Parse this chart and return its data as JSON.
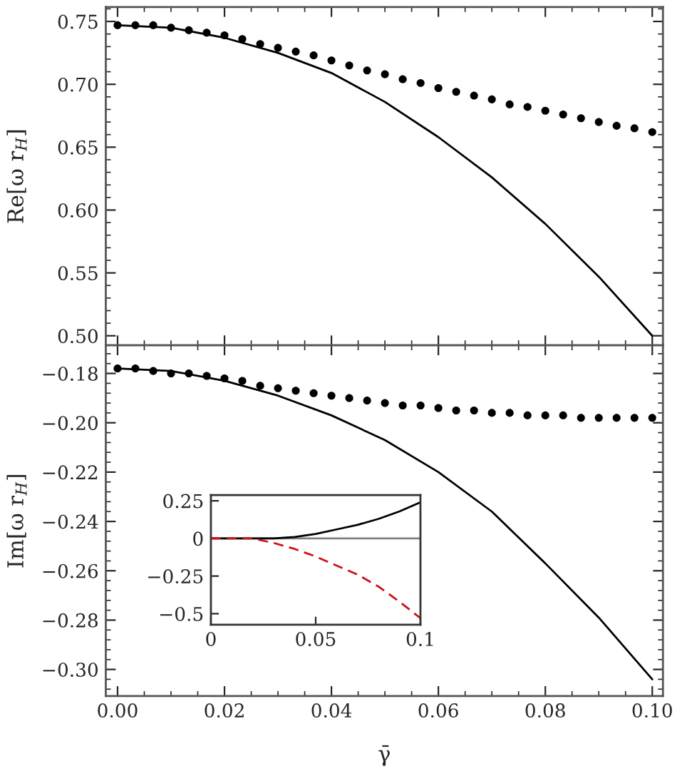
{
  "chart_data": [
    {
      "type": "line",
      "ylabel": "Re[ω r$_{H}$]",
      "xlim": [
        -0.0022,
        0.102
      ],
      "ylim": [
        0.4924,
        0.7615
      ],
      "xticks": [
        0,
        0.02,
        0.04,
        0.06,
        0.08,
        0.1
      ],
      "yticks": [
        {
          "value": 0.5,
          "label": "0.50"
        },
        {
          "value": 0.55,
          "label": "0.55"
        },
        {
          "value": 0.6,
          "label": "0.60"
        },
        {
          "value": 0.65,
          "label": "0.65"
        },
        {
          "value": 0.7,
          "label": "0.70"
        },
        {
          "value": 0.75,
          "label": "0.75"
        }
      ],
      "tick_labels": "y",
      "series": [
        {
          "type": "scatter",
          "color": "#000000",
          "marker": "circle",
          "x": [
            0.0,
            0.00333,
            0.00667,
            0.01,
            0.01333,
            0.01667,
            0.02,
            0.02333,
            0.02667,
            0.03,
            0.03333,
            0.03667,
            0.04,
            0.04333,
            0.04667,
            0.05,
            0.05333,
            0.05667,
            0.06,
            0.06333,
            0.06667,
            0.07,
            0.07333,
            0.07667,
            0.08,
            0.08333,
            0.08667,
            0.09,
            0.09333,
            0.09667,
            0.1
          ],
          "values": [
            0.747,
            0.747,
            0.747,
            0.745,
            0.743,
            0.741,
            0.739,
            0.736,
            0.732,
            0.729,
            0.726,
            0.723,
            0.719,
            0.715,
            0.711,
            0.708,
            0.704,
            0.701,
            0.697,
            0.694,
            0.691,
            0.688,
            0.684,
            0.682,
            0.679,
            0.676,
            0.673,
            0.67,
            0.667,
            0.665,
            0.662
          ]
        },
        {
          "color": "#000000",
          "line_style": "solid",
          "x": [
            0.0,
            0.01,
            0.02,
            0.03,
            0.04,
            0.05,
            0.06,
            0.07,
            0.08,
            0.09,
            0.1
          ],
          "values": [
            0.747,
            0.745,
            0.737,
            0.725,
            0.709,
            0.686,
            0.658,
            0.626,
            0.589,
            0.547,
            0.5
          ]
        }
      ]
    },
    {
      "type": "line",
      "ylabel": "Im[ω r$_{H}$]",
      "xlabel": "γ̄",
      "xlim": [
        -0.0022,
        0.102
      ],
      "ylim": [
        -0.3108,
        -0.1686
      ],
      "xticks": [
        {
          "value": 0.0,
          "label": "0.00"
        },
        {
          "value": 0.02,
          "label": "0.02"
        },
        {
          "value": 0.04,
          "label": "0.04"
        },
        {
          "value": 0.06,
          "label": "0.06"
        },
        {
          "value": 0.08,
          "label": "0.08"
        },
        {
          "value": 0.1,
          "label": "0.10"
        }
      ],
      "yticks": [
        {
          "value": -0.3,
          "label": "−0.30"
        },
        {
          "value": -0.28,
          "label": "−0.28"
        },
        {
          "value": -0.26,
          "label": "−0.26"
        },
        {
          "value": -0.24,
          "label": "−0.24"
        },
        {
          "value": -0.22,
          "label": "−0.22"
        },
        {
          "value": -0.2,
          "label": "−0.20"
        },
        {
          "value": -0.18,
          "label": "−0.18"
        }
      ],
      "series": [
        {
          "type": "scatter",
          "color": "#000000",
          "marker": "circle",
          "x": [
            0.0,
            0.00333,
            0.00667,
            0.01,
            0.01333,
            0.01667,
            0.02,
            0.02333,
            0.02667,
            0.03,
            0.03333,
            0.03667,
            0.04,
            0.04333,
            0.04667,
            0.05,
            0.05333,
            0.05667,
            0.06,
            0.06333,
            0.06667,
            0.07,
            0.07333,
            0.07667,
            0.08,
            0.08333,
            0.08667,
            0.09,
            0.09333,
            0.09667,
            0.1
          ],
          "values": [
            -0.178,
            -0.178,
            -0.179,
            -0.18,
            -0.18,
            -0.181,
            -0.182,
            -0.183,
            -0.185,
            -0.186,
            -0.187,
            -0.188,
            -0.189,
            -0.19,
            -0.191,
            -0.192,
            -0.193,
            -0.193,
            -0.194,
            -0.195,
            -0.195,
            -0.196,
            -0.196,
            -0.197,
            -0.197,
            -0.197,
            -0.198,
            -0.198,
            -0.198,
            -0.198,
            -0.198
          ]
        },
        {
          "color": "#000000",
          "line_style": "solid",
          "x": [
            0.0,
            0.01,
            0.02,
            0.03,
            0.04,
            0.05,
            0.06,
            0.07,
            0.08,
            0.09,
            0.1
          ],
          "values": [
            -0.178,
            -0.179,
            -0.183,
            -0.189,
            -0.197,
            -0.207,
            -0.22,
            -0.236,
            -0.257,
            -0.279,
            -0.304
          ]
        }
      ]
    },
    {
      "type": "line",
      "xlim": [
        0,
        0.1
      ],
      "ylim": [
        -0.573,
        0.288
      ],
      "xticks": [
        0,
        0.05,
        0.1
      ],
      "yticks": [
        {
          "value": -0.5,
          "label": "−0.5"
        },
        {
          "value": -0.25,
          "label": "−0.25"
        },
        {
          "value": 0,
          "label": "0"
        },
        {
          "value": 0.25,
          "label": "0.25"
        }
      ],
      "ref_lines": [
        {
          "axis": "y",
          "value": 0,
          "color": "#808080"
        }
      ],
      "series": [
        {
          "color": "#000000",
          "line_style": "solid",
          "x": [
            0.0,
            0.01,
            0.02,
            0.03,
            0.04,
            0.05,
            0.06,
            0.07,
            0.08,
            0.09,
            0.1
          ],
          "values": [
            0.0,
            0.0,
            0.0,
            0.0,
            0.01,
            0.03,
            0.06,
            0.09,
            0.13,
            0.18,
            0.24
          ]
        },
        {
          "color": "#d0101a",
          "line_style": "dashed",
          "x": [
            0.0,
            0.01,
            0.02,
            0.03,
            0.04,
            0.05,
            0.06,
            0.07,
            0.08,
            0.09,
            0.1
          ],
          "values": [
            0.0,
            0.0,
            0.0,
            -0.03,
            -0.07,
            -0.12,
            -0.18,
            -0.24,
            -0.32,
            -0.42,
            -0.53
          ]
        }
      ]
    }
  ]
}
